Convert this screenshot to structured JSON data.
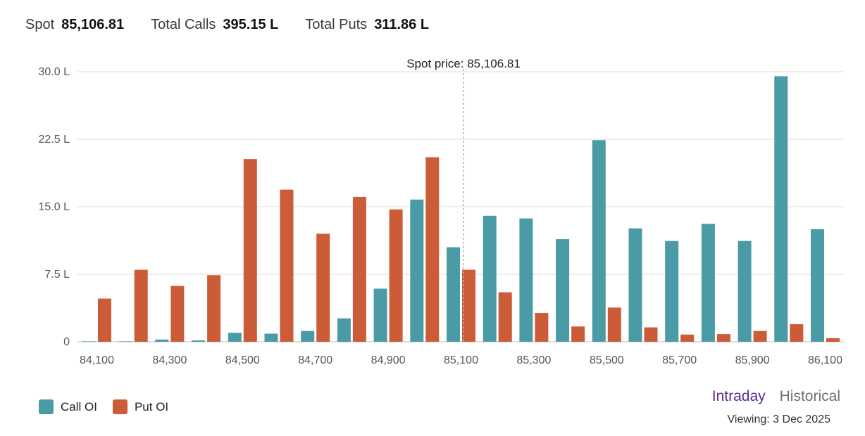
{
  "header": {
    "spot_label": "Spot",
    "spot_value": "85,106.81",
    "calls_label": "Total Calls",
    "calls_value": "395.15 L",
    "puts_label": "Total Puts",
    "puts_value": "311.86 L"
  },
  "chart_data": {
    "type": "bar",
    "title": "",
    "xlabel": "",
    "ylabel": "",
    "ylim": [
      0,
      30
    ],
    "y_ticks": [
      0,
      7.5,
      15,
      22.5,
      30
    ],
    "y_tick_labels": [
      "0",
      "7.5 L",
      "15.0 L",
      "22.5 L",
      "30.0 L"
    ],
    "x_tick_labels": [
      "84,100",
      "84,300",
      "84,500",
      "84,700",
      "84,900",
      "85,100",
      "85,300",
      "85,500",
      "85,700",
      "85,900",
      "86,100"
    ],
    "categories": [
      84100,
      84200,
      84300,
      84400,
      84500,
      84600,
      84700,
      84800,
      84900,
      85000,
      85100,
      85200,
      85300,
      85400,
      85500,
      85600,
      85700,
      85800,
      85900,
      86000,
      86100
    ],
    "series": [
      {
        "name": "Call OI",
        "color": "#4a9ba6",
        "values": [
          0.05,
          0.05,
          0.25,
          0.15,
          1.0,
          0.9,
          1.2,
          2.6,
          5.9,
          15.8,
          10.5,
          14.0,
          13.7,
          11.4,
          22.4,
          12.6,
          11.2,
          13.1,
          11.2,
          29.5,
          12.5
        ]
      },
      {
        "name": "Put OI",
        "color": "#cc5b37",
        "values": [
          4.8,
          8.0,
          6.2,
          7.4,
          20.3,
          16.9,
          12.0,
          16.1,
          14.7,
          20.5,
          8.0,
          5.5,
          3.2,
          1.7,
          3.8,
          1.6,
          0.8,
          0.85,
          1.2,
          1.95,
          0.4
        ]
      }
    ],
    "annotation": {
      "label": "Spot price: 85,106.81",
      "x": 85106.81
    },
    "grid": true,
    "legend_position": "bottom-left"
  },
  "legend": {
    "call_label": "Call OI",
    "put_label": "Put OI"
  },
  "modes": {
    "intraday": "Intraday",
    "historical": "Historical"
  },
  "viewing": "Viewing: 3 Dec 2025"
}
